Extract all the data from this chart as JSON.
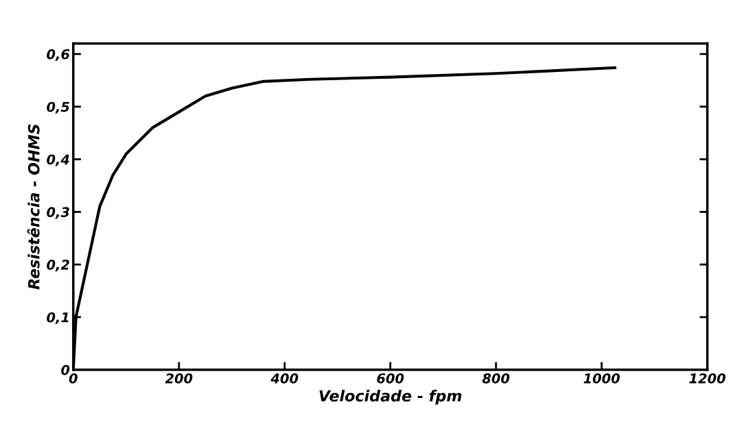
{
  "chart_data": {
    "type": "line",
    "xlabel": "Velocidade - fpm",
    "ylabel": "Resistência - OHMS",
    "x": [
      0,
      5,
      50,
      75,
      100,
      150,
      200,
      250,
      300,
      360,
      450,
      600,
      800,
      1025
    ],
    "series": [
      {
        "color": "#000000",
        "values": [
          0,
          0.1,
          0.31,
          0.37,
          0.41,
          0.46,
          0.49,
          0.52,
          0.535,
          0.548,
          0.552,
          0.556,
          0.563,
          0.574
        ]
      }
    ],
    "xlim": [
      0,
      1200
    ],
    "ylim": [
      0,
      0.62
    ],
    "xticks": [
      0,
      200,
      400,
      600,
      800,
      1000,
      1200
    ],
    "yticks": [
      0,
      {
        "value": 0.1,
        "label": "0,1"
      },
      {
        "value": 0.2,
        "label": "0,2"
      },
      {
        "value": 0.3,
        "label": "0,3"
      },
      {
        "value": 0.4,
        "label": "0,4"
      },
      {
        "value": 0.5,
        "label": "0,5"
      },
      {
        "value": 0.6,
        "label": "0,6"
      }
    ],
    "grid": false,
    "legend": false,
    "marker": "none",
    "line_style": "solid"
  }
}
